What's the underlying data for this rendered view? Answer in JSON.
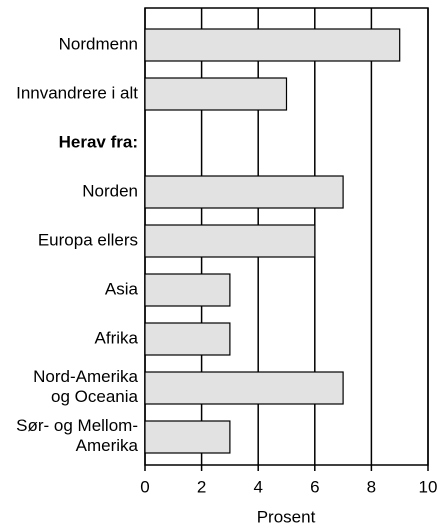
{
  "chart_data": {
    "type": "barh",
    "xlabel": "Prosent",
    "categories": [
      "Nordmenn",
      "Innvandrere i alt",
      "Herav fra:",
      "Norden",
      "Europa ellers",
      "Asia",
      "Afrika",
      "Nord-Amerika\nog Oceania",
      "Sør- og Mellom-\nAmerika"
    ],
    "values": [
      9,
      5,
      null,
      7,
      6,
      3,
      3,
      7,
      3
    ],
    "color": "#e2e2e2",
    "xlim": [
      0,
      10
    ],
    "xticks": [
      0,
      2,
      4,
      6,
      8,
      10
    ],
    "grid": true
  }
}
